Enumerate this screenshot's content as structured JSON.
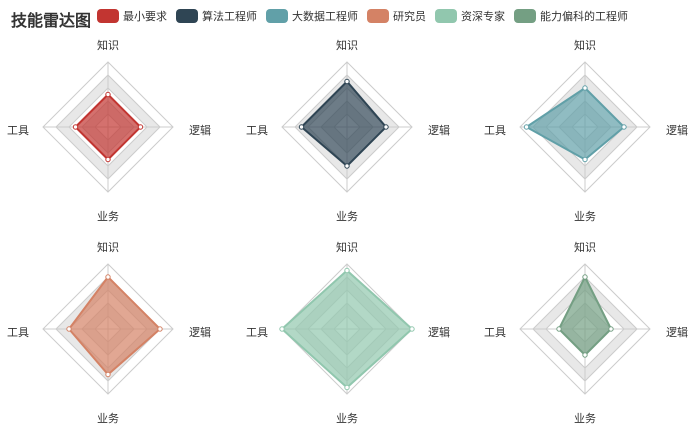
{
  "chart_data": {
    "type": "radar",
    "title": "技能雷达图",
    "indicators": [
      "知识",
      "逻辑",
      "业务",
      "工具"
    ],
    "max": 5,
    "series": [
      {
        "name": "最小要求",
        "color": "#c23531",
        "values": [
          2.5,
          2.5,
          2.5,
          2.5
        ]
      },
      {
        "name": "算法工程师",
        "color": "#2f4554",
        "values": [
          3.5,
          3,
          3,
          3.5
        ]
      },
      {
        "name": "大数据工程师",
        "color": "#61a0a8",
        "values": [
          3,
          3,
          2.5,
          4.5
        ]
      },
      {
        "name": "研究员",
        "color": "#d48265",
        "values": [
          4,
          4,
          3.5,
          3
        ]
      },
      {
        "name": "资深专家",
        "color": "#91c7ae",
        "values": [
          4.5,
          5,
          4.5,
          5
        ]
      },
      {
        "name": "能力偏科的工程师",
        "color": "#749f83",
        "values": [
          4,
          2,
          2,
          2
        ]
      }
    ],
    "legend": "top",
    "layout": "2x3 grid"
  }
}
